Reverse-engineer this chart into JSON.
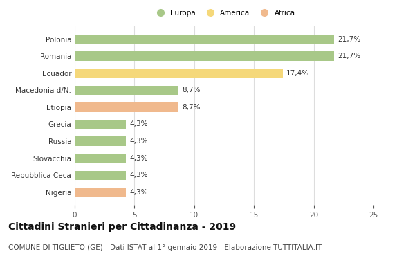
{
  "categories": [
    "Nigeria",
    "Repubblica Ceca",
    "Slovacchia",
    "Russia",
    "Grecia",
    "Etiopia",
    "Macedonia d/N.",
    "Ecuador",
    "Romania",
    "Polonia"
  ],
  "values": [
    4.3,
    4.3,
    4.3,
    4.3,
    4.3,
    8.7,
    8.7,
    17.4,
    21.7,
    21.7
  ],
  "bar_colors": [
    "#f0b98d",
    "#a8c888",
    "#a8c888",
    "#a8c888",
    "#a8c888",
    "#f0b98d",
    "#a8c888",
    "#f5d87a",
    "#a8c888",
    "#a8c888"
  ],
  "labels": [
    "4,3%",
    "4,3%",
    "4,3%",
    "4,3%",
    "4,3%",
    "8,7%",
    "8,7%",
    "17,4%",
    "21,7%",
    "21,7%"
  ],
  "legend": [
    {
      "label": "Europa",
      "color": "#a8c888"
    },
    {
      "label": "America",
      "color": "#f5d87a"
    },
    {
      "label": "Africa",
      "color": "#f0b98d"
    }
  ],
  "xlim": [
    0,
    25
  ],
  "xticks": [
    0,
    5,
    10,
    15,
    20,
    25
  ],
  "title": "Cittadini Stranieri per Cittadinanza - 2019",
  "subtitle": "COMUNE DI TIGLIETO (GE) - Dati ISTAT al 1° gennaio 2019 - Elaborazione TUTTITALIA.IT",
  "title_fontsize": 10,
  "subtitle_fontsize": 7.5,
  "label_fontsize": 7.5,
  "tick_fontsize": 7.5,
  "background_color": "#ffffff",
  "grid_color": "#dddddd",
  "bar_height": 0.55
}
